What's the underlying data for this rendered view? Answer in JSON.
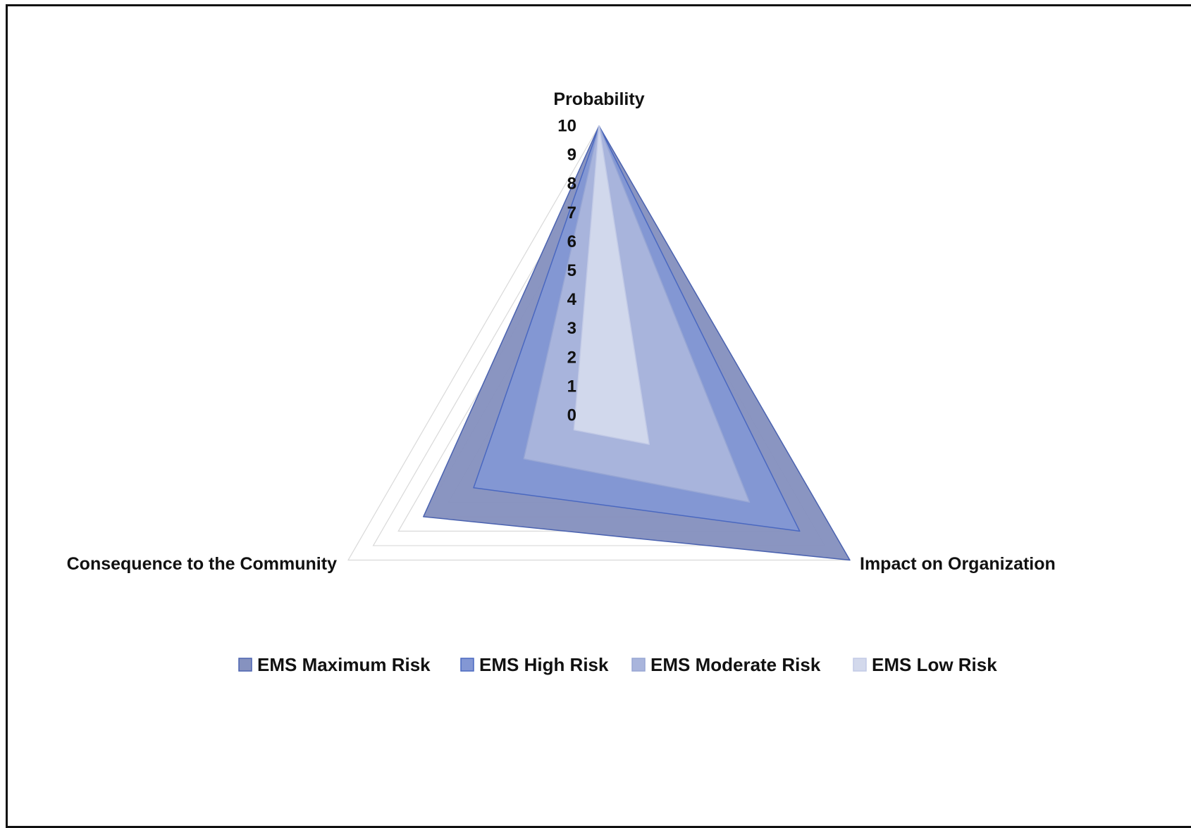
{
  "chart_data": {
    "type": "radar",
    "axes": [
      "Probability",
      "Impact on Organization",
      "Consequence to the Community"
    ],
    "r_ticks": [
      "0",
      "1",
      "2",
      "3",
      "4",
      "5",
      "6",
      "7",
      "8",
      "9",
      "10"
    ],
    "rlim": [
      0,
      10
    ],
    "grid": true,
    "legend": "bottom",
    "series": [
      {
        "name": "EMS Maximum Risk",
        "values": [
          10,
          10,
          7
        ],
        "fill": "#8692bf",
        "stroke": "#4a62b0"
      },
      {
        "name": "EMS High Risk",
        "values": [
          10,
          8,
          5
        ],
        "fill": "#8397d4",
        "stroke": "#4a68c0"
      },
      {
        "name": "EMS Moderate Risk",
        "values": [
          10,
          6,
          3
        ],
        "fill": "#a9b5dc",
        "stroke": "#97a6d4"
      },
      {
        "name": "EMS Low Risk",
        "values": [
          10,
          2,
          1
        ],
        "fill": "#d3d9ec",
        "stroke": "#c2cae6"
      }
    ],
    "colors": {
      "grid": "#d9d9d9",
      "text": "#111111",
      "frame": "#111111"
    }
  }
}
